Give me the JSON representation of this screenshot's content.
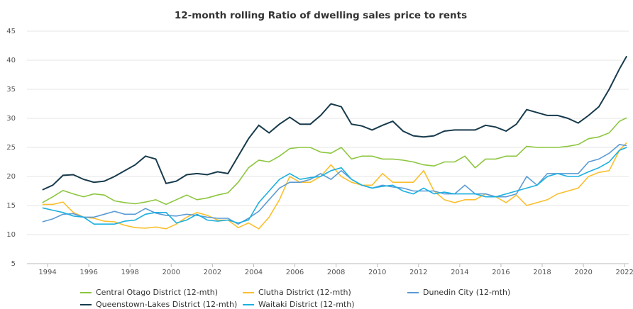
{
  "chart_data": {
    "type": "line",
    "title": "12-month rolling Ratio of dwelling sales price to rents",
    "x": [
      1993.75,
      1994.25,
      1994.75,
      1995.25,
      1995.75,
      1996.25,
      1996.75,
      1997.25,
      1997.75,
      1998.25,
      1998.75,
      1999.25,
      1999.75,
      2000.25,
      2000.75,
      2001.25,
      2001.75,
      2002.25,
      2002.75,
      2003.25,
      2003.75,
      2004.25,
      2004.75,
      2005.25,
      2005.75,
      2006.25,
      2006.75,
      2007.25,
      2007.75,
      2008.25,
      2008.75,
      2009.25,
      2009.75,
      2010.25,
      2010.75,
      2011.25,
      2011.75,
      2012.25,
      2012.75,
      2013.25,
      2013.75,
      2014.25,
      2014.75,
      2015.25,
      2015.75,
      2016.25,
      2016.75,
      2017.25,
      2017.75,
      2018.25,
      2018.75,
      2019.25,
      2019.75,
      2020.25,
      2020.75,
      2021.25,
      2021.75,
      2022.1
    ],
    "series": [
      {
        "name": "Central Otago District (12-mth)",
        "color": "#8cc63e",
        "values": [
          15.5,
          16.5,
          17.6,
          17.0,
          16.5,
          17.0,
          16.8,
          15.8,
          15.5,
          15.3,
          15.6,
          16.0,
          15.2,
          16.0,
          16.8,
          16.0,
          16.3,
          16.8,
          17.2,
          19.0,
          21.5,
          22.8,
          22.5,
          23.5,
          24.8,
          25.0,
          25.0,
          24.2,
          24.0,
          25.0,
          23.0,
          23.5,
          23.5,
          23.0,
          23.0,
          22.8,
          22.5,
          22.0,
          21.8,
          22.5,
          22.5,
          23.5,
          21.5,
          23.0,
          23.0,
          23.5,
          23.5,
          25.2,
          25.0,
          25.0,
          25.0,
          25.2,
          25.5,
          26.5,
          26.8,
          27.5,
          29.5,
          30.1
        ]
      },
      {
        "name": "Clutha District (12-mth)",
        "color": "#fbbf2d",
        "values": [
          15.2,
          15.2,
          15.6,
          13.8,
          13.0,
          12.8,
          12.3,
          12.2,
          11.6,
          11.2,
          11.1,
          11.3,
          11.0,
          11.8,
          13.0,
          13.8,
          13.3,
          12.5,
          12.5,
          11.2,
          12.0,
          11.0,
          13.0,
          16.0,
          20.0,
          19.0,
          19.0,
          20.0,
          22.0,
          20.0,
          19.0,
          18.5,
          18.5,
          20.5,
          19.0,
          19.0,
          19.0,
          21.0,
          17.5,
          16.0,
          15.5,
          16.0,
          16.0,
          17.0,
          16.5,
          15.5,
          16.8,
          15.0,
          15.5,
          16.0,
          17.0,
          17.5,
          18.0,
          20.0,
          20.7,
          21.0,
          24.5,
          25.8
        ]
      },
      {
        "name": "Dunedin City (12-mth)",
        "color": "#5b9bd5",
        "values": [
          12.2,
          12.7,
          13.5,
          13.6,
          13.0,
          13.0,
          13.5,
          14.0,
          13.5,
          13.5,
          14.5,
          13.7,
          13.3,
          13.2,
          13.5,
          13.3,
          13.0,
          12.8,
          12.8,
          11.8,
          12.8,
          14.0,
          16.0,
          18.0,
          19.0,
          19.0,
          19.5,
          20.5,
          19.5,
          21.0,
          19.5,
          18.5,
          18.0,
          18.5,
          18.2,
          18.0,
          17.5,
          17.5,
          17.5,
          17.0,
          17.0,
          18.5,
          17.0,
          17.0,
          16.5,
          16.5,
          17.0,
          20.0,
          18.5,
          20.5,
          20.5,
          20.5,
          20.5,
          22.5,
          23.0,
          24.0,
          25.5,
          25.3
        ]
      },
      {
        "name": "Queenstown-Lakes District (12-mth)",
        "color": "#173a4c",
        "values": [
          17.7,
          18.5,
          20.2,
          20.3,
          19.5,
          19.0,
          19.2,
          20.0,
          21.0,
          22.0,
          23.5,
          23.0,
          18.8,
          19.2,
          20.3,
          20.5,
          20.3,
          20.8,
          20.5,
          23.5,
          26.5,
          28.8,
          27.5,
          29.0,
          30.2,
          29.0,
          29.0,
          30.5,
          32.5,
          32.0,
          29.0,
          28.7,
          28.0,
          28.8,
          29.5,
          27.8,
          27.0,
          26.8,
          27.0,
          27.8,
          28.0,
          28.0,
          28.0,
          28.8,
          28.5,
          27.8,
          29.0,
          31.5,
          31.0,
          30.5,
          30.5,
          30.0,
          29.2,
          30.5,
          32.0,
          35.0,
          38.5,
          40.7
        ]
      },
      {
        "name": "Waitaki District (12-mth)",
        "color": "#1cb0e0",
        "values": [
          14.6,
          14.2,
          13.8,
          13.2,
          13.0,
          11.8,
          11.8,
          11.8,
          12.3,
          12.5,
          13.5,
          13.8,
          13.8,
          12.0,
          12.5,
          13.5,
          12.5,
          12.3,
          12.5,
          12.0,
          12.5,
          15.5,
          17.5,
          19.5,
          20.5,
          19.5,
          19.8,
          20.0,
          21.0,
          21.5,
          19.5,
          18.5,
          18.0,
          18.3,
          18.5,
          17.5,
          17.0,
          18.0,
          17.0,
          17.3,
          17.0,
          17.0,
          17.0,
          16.5,
          16.5,
          17.0,
          17.5,
          18.0,
          18.5,
          20.0,
          20.5,
          20.0,
          20.0,
          20.8,
          21.5,
          22.5,
          24.5,
          25.0
        ]
      }
    ],
    "xlim": [
      1993,
      2022.2
    ],
    "xticks": [
      1994,
      1996,
      1998,
      2000,
      2002,
      2004,
      2006,
      2008,
      2010,
      2012,
      2014,
      2016,
      2018,
      2020,
      2022
    ],
    "ylim": [
      5,
      45
    ],
    "yticks": [
      5,
      10,
      15,
      20,
      25,
      30,
      35,
      40,
      45
    ],
    "grid": true
  }
}
